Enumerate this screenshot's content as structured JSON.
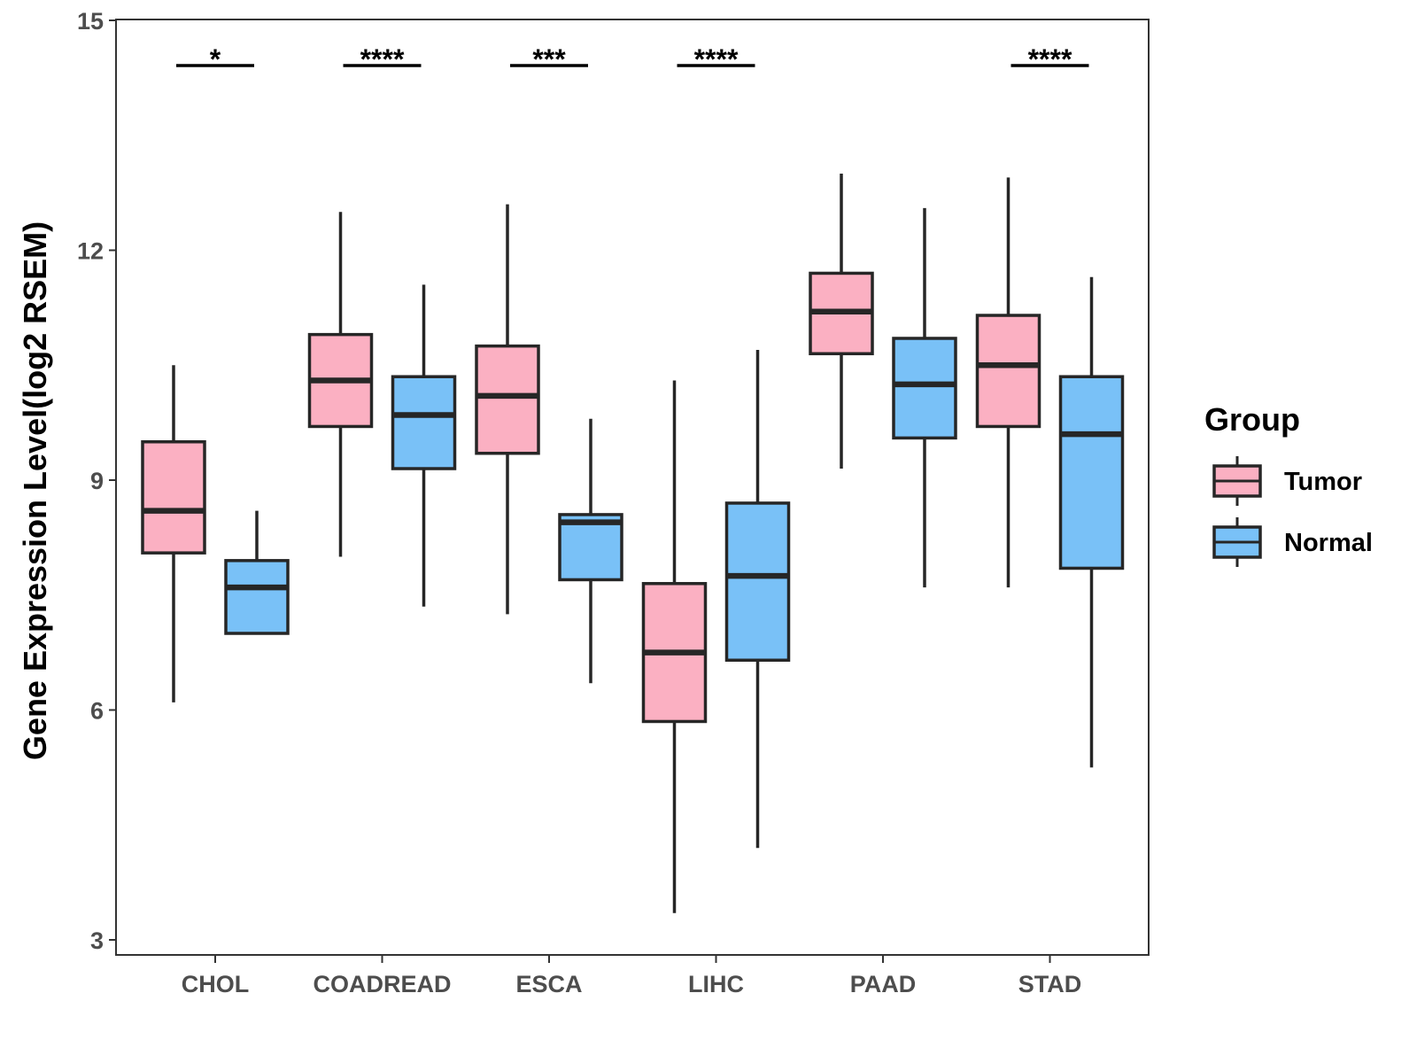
{
  "chart_data": {
    "type": "boxplot",
    "ylabel": "Gene Expression Level(log2 RSEM)",
    "xlabel": "",
    "ylim": [
      2.8,
      15
    ],
    "yticks": [
      3,
      6,
      9,
      12,
      15
    ],
    "grid": false,
    "legend_position": "right",
    "categories": [
      "CHOL",
      "COADREAD",
      "ESCA",
      "LIHC",
      "PAAD",
      "STAD"
    ],
    "legend": {
      "title": "Group",
      "entries": [
        {
          "name": "Tumor",
          "color": "#FBB0C2"
        },
        {
          "name": "Normal",
          "color": "#79C1F7"
        }
      ]
    },
    "series": [
      {
        "name": "Tumor",
        "color": "#FBB0C2",
        "boxes": [
          {
            "min": 6.1,
            "q1": 8.05,
            "median": 8.6,
            "q3": 9.5,
            "max": 10.5
          },
          {
            "min": 8.0,
            "q1": 9.7,
            "median": 10.3,
            "q3": 10.9,
            "max": 12.5
          },
          {
            "min": 7.25,
            "q1": 9.35,
            "median": 10.1,
            "q3": 10.75,
            "max": 12.6
          },
          {
            "min": 3.35,
            "q1": 5.85,
            "median": 6.75,
            "q3": 7.65,
            "max": 10.3
          },
          {
            "min": 9.15,
            "q1": 10.65,
            "median": 11.2,
            "q3": 11.7,
            "max": 13.0
          },
          {
            "min": 7.6,
            "q1": 9.7,
            "median": 10.5,
            "q3": 11.15,
            "max": 12.95
          }
        ]
      },
      {
        "name": "Normal",
        "color": "#79C1F7",
        "boxes": [
          {
            "min": 7.0,
            "q1": 7.0,
            "median": 7.6,
            "q3": 7.95,
            "max": 8.6
          },
          {
            "min": 7.35,
            "q1": 9.15,
            "median": 9.85,
            "q3": 10.35,
            "max": 11.55
          },
          {
            "min": 6.35,
            "q1": 7.7,
            "median": 8.45,
            "q3": 8.55,
            "max": 9.8
          },
          {
            "min": 4.2,
            "q1": 6.65,
            "median": 7.75,
            "q3": 8.7,
            "max": 10.7
          },
          {
            "min": 7.6,
            "q1": 9.55,
            "median": 10.25,
            "q3": 10.85,
            "max": 12.55
          },
          {
            "min": 5.25,
            "q1": 7.85,
            "median": 9.6,
            "q3": 10.35,
            "max": 11.65
          }
        ]
      }
    ],
    "significance": [
      {
        "category": "CHOL",
        "label": "*"
      },
      {
        "category": "COADREAD",
        "label": "****"
      },
      {
        "category": "ESCA",
        "label": "***"
      },
      {
        "category": "LIHC",
        "label": "****"
      },
      {
        "category": "PAAD",
        "label": ""
      },
      {
        "category": "STAD",
        "label": "****"
      }
    ]
  }
}
